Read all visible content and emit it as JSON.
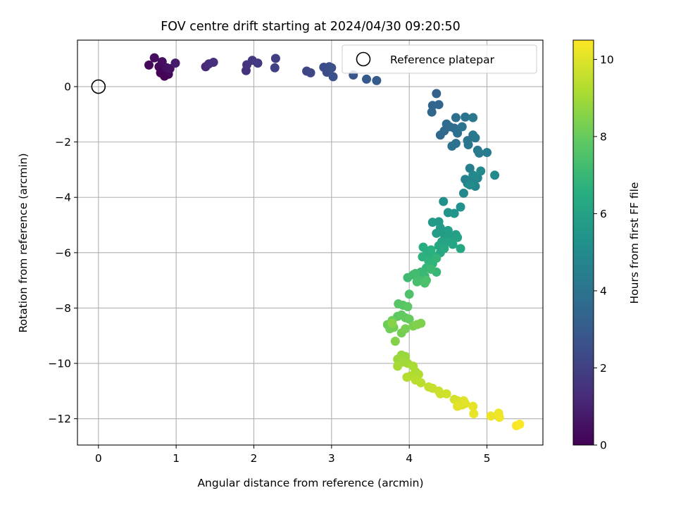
{
  "chart_data": {
    "type": "scatter",
    "title": "FOV centre drift starting at 2024/04/30 09:20:50",
    "xlabel": "Angular distance from reference (arcmin)",
    "ylabel": "Rotation from reference (arcmin)",
    "xlim": [
      -0.27,
      5.72
    ],
    "ylim": [
      -12.95,
      1.68
    ],
    "xticks": [
      0,
      1,
      2,
      3,
      4,
      5
    ],
    "yticks": [
      0,
      -2,
      -4,
      -6,
      -8,
      -10,
      -12
    ],
    "grid": true,
    "legend": {
      "placement": "top-right",
      "entries": [
        "Reference platepar"
      ]
    },
    "reference_point": {
      "x": 0,
      "y": 0,
      "label": "Reference platepar"
    },
    "colorbar": {
      "label": "Hours from first FF file",
      "range": [
        0,
        10.5
      ],
      "ticks": [
        0,
        2,
        4,
        6,
        8,
        10
      ],
      "colormap": "viridis"
    },
    "points": [
      {
        "x": 0.65,
        "y": 0.78,
        "h": 0.25
      },
      {
        "x": 0.72,
        "y": 1.04,
        "h": 0.35
      },
      {
        "x": 0.78,
        "y": 0.72,
        "h": 0.2
      },
      {
        "x": 0.82,
        "y": 0.9,
        "h": 0.4
      },
      {
        "x": 0.8,
        "y": 0.5,
        "h": 0.1
      },
      {
        "x": 0.85,
        "y": 0.38,
        "h": 0.05
      },
      {
        "x": 0.9,
        "y": 0.45,
        "h": 0.15
      },
      {
        "x": 0.88,
        "y": 0.68,
        "h": 0.45
      },
      {
        "x": 0.92,
        "y": 0.65,
        "h": 0.5
      },
      {
        "x": 0.99,
        "y": 0.85,
        "h": 0.8
      },
      {
        "x": 1.38,
        "y": 0.72,
        "h": 1.2
      },
      {
        "x": 1.42,
        "y": 0.82,
        "h": 1.3
      },
      {
        "x": 1.48,
        "y": 0.88,
        "h": 1.4
      },
      {
        "x": 1.9,
        "y": 0.58,
        "h": 1.5
      },
      {
        "x": 1.91,
        "y": 0.79,
        "h": 1.6
      },
      {
        "x": 1.98,
        "y": 0.95,
        "h": 1.7
      },
      {
        "x": 2.05,
        "y": 0.85,
        "h": 1.8
      },
      {
        "x": 2.28,
        "y": 1.02,
        "h": 1.9
      },
      {
        "x": 2.27,
        "y": 0.68,
        "h": 2.0
      },
      {
        "x": 2.68,
        "y": 0.56,
        "h": 2.2
      },
      {
        "x": 2.73,
        "y": 0.5,
        "h": 2.25
      },
      {
        "x": 2.9,
        "y": 0.7,
        "h": 2.4
      },
      {
        "x": 2.94,
        "y": 0.52,
        "h": 2.45
      },
      {
        "x": 2.97,
        "y": 0.72,
        "h": 2.5
      },
      {
        "x": 3.0,
        "y": 0.68,
        "h": 2.55
      },
      {
        "x": 3.02,
        "y": 0.36,
        "h": 2.6
      },
      {
        "x": 3.28,
        "y": 0.42,
        "h": 2.8
      },
      {
        "x": 3.45,
        "y": 0.27,
        "h": 2.95
      },
      {
        "x": 3.58,
        "y": 0.22,
        "h": 3.05
      },
      {
        "x": 4.35,
        "y": -0.25,
        "h": 3.3
      },
      {
        "x": 4.3,
        "y": -0.68,
        "h": 3.4
      },
      {
        "x": 4.38,
        "y": -0.65,
        "h": 3.45
      },
      {
        "x": 4.29,
        "y": -0.92,
        "h": 3.5
      },
      {
        "x": 4.4,
        "y": -1.75,
        "h": 3.55
      },
      {
        "x": 4.45,
        "y": -1.6,
        "h": 3.6
      },
      {
        "x": 4.48,
        "y": -1.35,
        "h": 3.65
      },
      {
        "x": 4.52,
        "y": -1.45,
        "h": 3.7
      },
      {
        "x": 4.58,
        "y": -1.5,
        "h": 3.75
      },
      {
        "x": 4.6,
        "y": -1.12,
        "h": 3.8
      },
      {
        "x": 4.62,
        "y": -1.68,
        "h": 3.85
      },
      {
        "x": 4.55,
        "y": -2.15,
        "h": 3.9
      },
      {
        "x": 4.6,
        "y": -2.05,
        "h": 3.95
      },
      {
        "x": 4.72,
        "y": -1.1,
        "h": 4.0
      },
      {
        "x": 4.75,
        "y": -1.95,
        "h": 4.05
      },
      {
        "x": 4.76,
        "y": -2.1,
        "h": 4.1
      },
      {
        "x": 4.82,
        "y": -1.12,
        "h": 4.15
      },
      {
        "x": 4.85,
        "y": -1.85,
        "h": 4.2
      },
      {
        "x": 4.88,
        "y": -2.3,
        "h": 4.25
      },
      {
        "x": 4.9,
        "y": -2.4,
        "h": 4.3
      },
      {
        "x": 5.0,
        "y": -2.38,
        "h": 4.35
      },
      {
        "x": 4.82,
        "y": -1.75,
        "h": 4.2
      },
      {
        "x": 4.68,
        "y": -1.45,
        "h": 4.0
      },
      {
        "x": 4.78,
        "y": -2.95,
        "h": 4.5
      },
      {
        "x": 4.72,
        "y": -3.35,
        "h": 4.6
      },
      {
        "x": 4.75,
        "y": -3.5,
        "h": 4.65
      },
      {
        "x": 4.8,
        "y": -3.4,
        "h": 4.7
      },
      {
        "x": 4.85,
        "y": -3.6,
        "h": 4.75
      },
      {
        "x": 4.88,
        "y": -3.3,
        "h": 4.8
      },
      {
        "x": 4.7,
        "y": -3.85,
        "h": 4.85
      },
      {
        "x": 4.82,
        "y": -3.2,
        "h": 4.9
      },
      {
        "x": 4.92,
        "y": -3.05,
        "h": 4.95
      },
      {
        "x": 5.1,
        "y": -3.2,
        "h": 5.0
      },
      {
        "x": 4.78,
        "y": -3.55,
        "h": 5.05
      },
      {
        "x": 4.44,
        "y": -4.15,
        "h": 5.2
      },
      {
        "x": 4.66,
        "y": -4.35,
        "h": 5.3
      },
      {
        "x": 4.5,
        "y": -4.55,
        "h": 5.4
      },
      {
        "x": 4.58,
        "y": -4.58,
        "h": 5.45
      },
      {
        "x": 4.3,
        "y": -4.9,
        "h": 5.6
      },
      {
        "x": 4.38,
        "y": -4.88,
        "h": 5.65
      },
      {
        "x": 4.4,
        "y": -5.1,
        "h": 5.7
      },
      {
        "x": 4.35,
        "y": -5.3,
        "h": 5.75
      },
      {
        "x": 4.45,
        "y": -5.35,
        "h": 5.8
      },
      {
        "x": 4.5,
        "y": -5.2,
        "h": 5.85
      },
      {
        "x": 4.55,
        "y": -5.4,
        "h": 5.9
      },
      {
        "x": 4.6,
        "y": -5.35,
        "h": 5.95
      },
      {
        "x": 4.62,
        "y": -5.45,
        "h": 6.0
      },
      {
        "x": 4.42,
        "y": -5.6,
        "h": 6.05
      },
      {
        "x": 4.5,
        "y": -5.6,
        "h": 6.1
      },
      {
        "x": 4.56,
        "y": -5.7,
        "h": 6.15
      },
      {
        "x": 4.38,
        "y": -5.75,
        "h": 6.2
      },
      {
        "x": 4.66,
        "y": -5.85,
        "h": 6.25
      },
      {
        "x": 4.4,
        "y": -6.0,
        "h": 6.3
      },
      {
        "x": 4.45,
        "y": -5.85,
        "h": 6.35
      },
      {
        "x": 4.18,
        "y": -5.8,
        "h": 6.5
      },
      {
        "x": 4.22,
        "y": -6.05,
        "h": 6.55
      },
      {
        "x": 4.28,
        "y": -5.9,
        "h": 6.6
      },
      {
        "x": 4.3,
        "y": -6.1,
        "h": 6.65
      },
      {
        "x": 4.17,
        "y": -6.15,
        "h": 6.7
      },
      {
        "x": 4.25,
        "y": -6.3,
        "h": 6.75
      },
      {
        "x": 4.3,
        "y": -6.4,
        "h": 6.8
      },
      {
        "x": 4.35,
        "y": -6.2,
        "h": 6.85
      },
      {
        "x": 4.22,
        "y": -6.55,
        "h": 6.9
      },
      {
        "x": 4.35,
        "y": -6.7,
        "h": 6.95
      },
      {
        "x": 4.15,
        "y": -6.7,
        "h": 7.0
      },
      {
        "x": 4.2,
        "y": -6.85,
        "h": 7.05
      },
      {
        "x": 4.28,
        "y": -6.6,
        "h": 7.1
      },
      {
        "x": 3.98,
        "y": -6.9,
        "h": 7.15
      },
      {
        "x": 4.05,
        "y": -6.8,
        "h": 7.2
      },
      {
        "x": 4.08,
        "y": -6.75,
        "h": 7.25
      },
      {
        "x": 4.12,
        "y": -7.0,
        "h": 7.3
      },
      {
        "x": 4.1,
        "y": -7.05,
        "h": 7.35
      },
      {
        "x": 4.2,
        "y": -7.1,
        "h": 7.4
      },
      {
        "x": 4.22,
        "y": -7.0,
        "h": 7.45
      },
      {
        "x": 4.0,
        "y": -7.5,
        "h": 7.5
      },
      {
        "x": 3.86,
        "y": -7.85,
        "h": 7.7
      },
      {
        "x": 3.92,
        "y": -7.9,
        "h": 7.75
      },
      {
        "x": 3.98,
        "y": -7.95,
        "h": 7.8
      },
      {
        "x": 3.85,
        "y": -8.3,
        "h": 7.85
      },
      {
        "x": 3.9,
        "y": -8.25,
        "h": 7.9
      },
      {
        "x": 3.95,
        "y": -8.35,
        "h": 7.95
      },
      {
        "x": 4.0,
        "y": -8.4,
        "h": 8.0
      },
      {
        "x": 3.78,
        "y": -8.45,
        "h": 8.05
      },
      {
        "x": 3.72,
        "y": -8.6,
        "h": 8.1
      },
      {
        "x": 3.75,
        "y": -8.75,
        "h": 8.15
      },
      {
        "x": 3.8,
        "y": -8.7,
        "h": 8.2
      },
      {
        "x": 3.9,
        "y": -8.9,
        "h": 8.25
      },
      {
        "x": 3.95,
        "y": -8.75,
        "h": 8.3
      },
      {
        "x": 4.05,
        "y": -8.65,
        "h": 8.35
      },
      {
        "x": 4.15,
        "y": -8.55,
        "h": 8.4
      },
      {
        "x": 4.1,
        "y": -8.6,
        "h": 8.45
      },
      {
        "x": 3.82,
        "y": -9.2,
        "h": 8.5
      },
      {
        "x": 3.78,
        "y": -8.55,
        "h": 8.55
      },
      {
        "x": 3.9,
        "y": -9.7,
        "h": 8.8
      },
      {
        "x": 3.95,
        "y": -9.75,
        "h": 8.85
      },
      {
        "x": 3.85,
        "y": -9.85,
        "h": 8.9
      },
      {
        "x": 3.92,
        "y": -9.95,
        "h": 8.95
      },
      {
        "x": 3.98,
        "y": -10.0,
        "h": 9.0
      },
      {
        "x": 3.85,
        "y": -10.1,
        "h": 9.05
      },
      {
        "x": 4.05,
        "y": -10.1,
        "h": 9.1
      },
      {
        "x": 4.08,
        "y": -10.3,
        "h": 9.15
      },
      {
        "x": 4.12,
        "y": -10.4,
        "h": 9.2
      },
      {
        "x": 4.02,
        "y": -10.45,
        "h": 9.25
      },
      {
        "x": 3.97,
        "y": -10.5,
        "h": 9.3
      },
      {
        "x": 4.08,
        "y": -10.6,
        "h": 9.35
      },
      {
        "x": 4.15,
        "y": -10.7,
        "h": 9.4
      },
      {
        "x": 4.25,
        "y": -10.85,
        "h": 9.55
      },
      {
        "x": 4.3,
        "y": -10.9,
        "h": 9.6
      },
      {
        "x": 4.38,
        "y": -11.0,
        "h": 9.65
      },
      {
        "x": 4.4,
        "y": -11.1,
        "h": 9.7
      },
      {
        "x": 4.48,
        "y": -11.1,
        "h": 9.75
      },
      {
        "x": 4.58,
        "y": -11.3,
        "h": 9.8
      },
      {
        "x": 4.62,
        "y": -11.35,
        "h": 9.85
      },
      {
        "x": 4.65,
        "y": -11.45,
        "h": 9.9
      },
      {
        "x": 4.68,
        "y": -11.5,
        "h": 9.95
      },
      {
        "x": 4.7,
        "y": -11.35,
        "h": 10.0
      },
      {
        "x": 4.62,
        "y": -11.55,
        "h": 10.05
      },
      {
        "x": 4.72,
        "y": -11.45,
        "h": 10.05
      },
      {
        "x": 4.82,
        "y": -11.55,
        "h": 10.1
      },
      {
        "x": 4.83,
        "y": -11.82,
        "h": 10.15
      },
      {
        "x": 5.05,
        "y": -11.9,
        "h": 10.2
      },
      {
        "x": 5.15,
        "y": -11.8,
        "h": 10.25
      },
      {
        "x": 5.16,
        "y": -11.95,
        "h": 10.3
      },
      {
        "x": 5.38,
        "y": -12.25,
        "h": 10.4
      },
      {
        "x": 5.42,
        "y": -12.2,
        "h": 10.45
      }
    ]
  }
}
